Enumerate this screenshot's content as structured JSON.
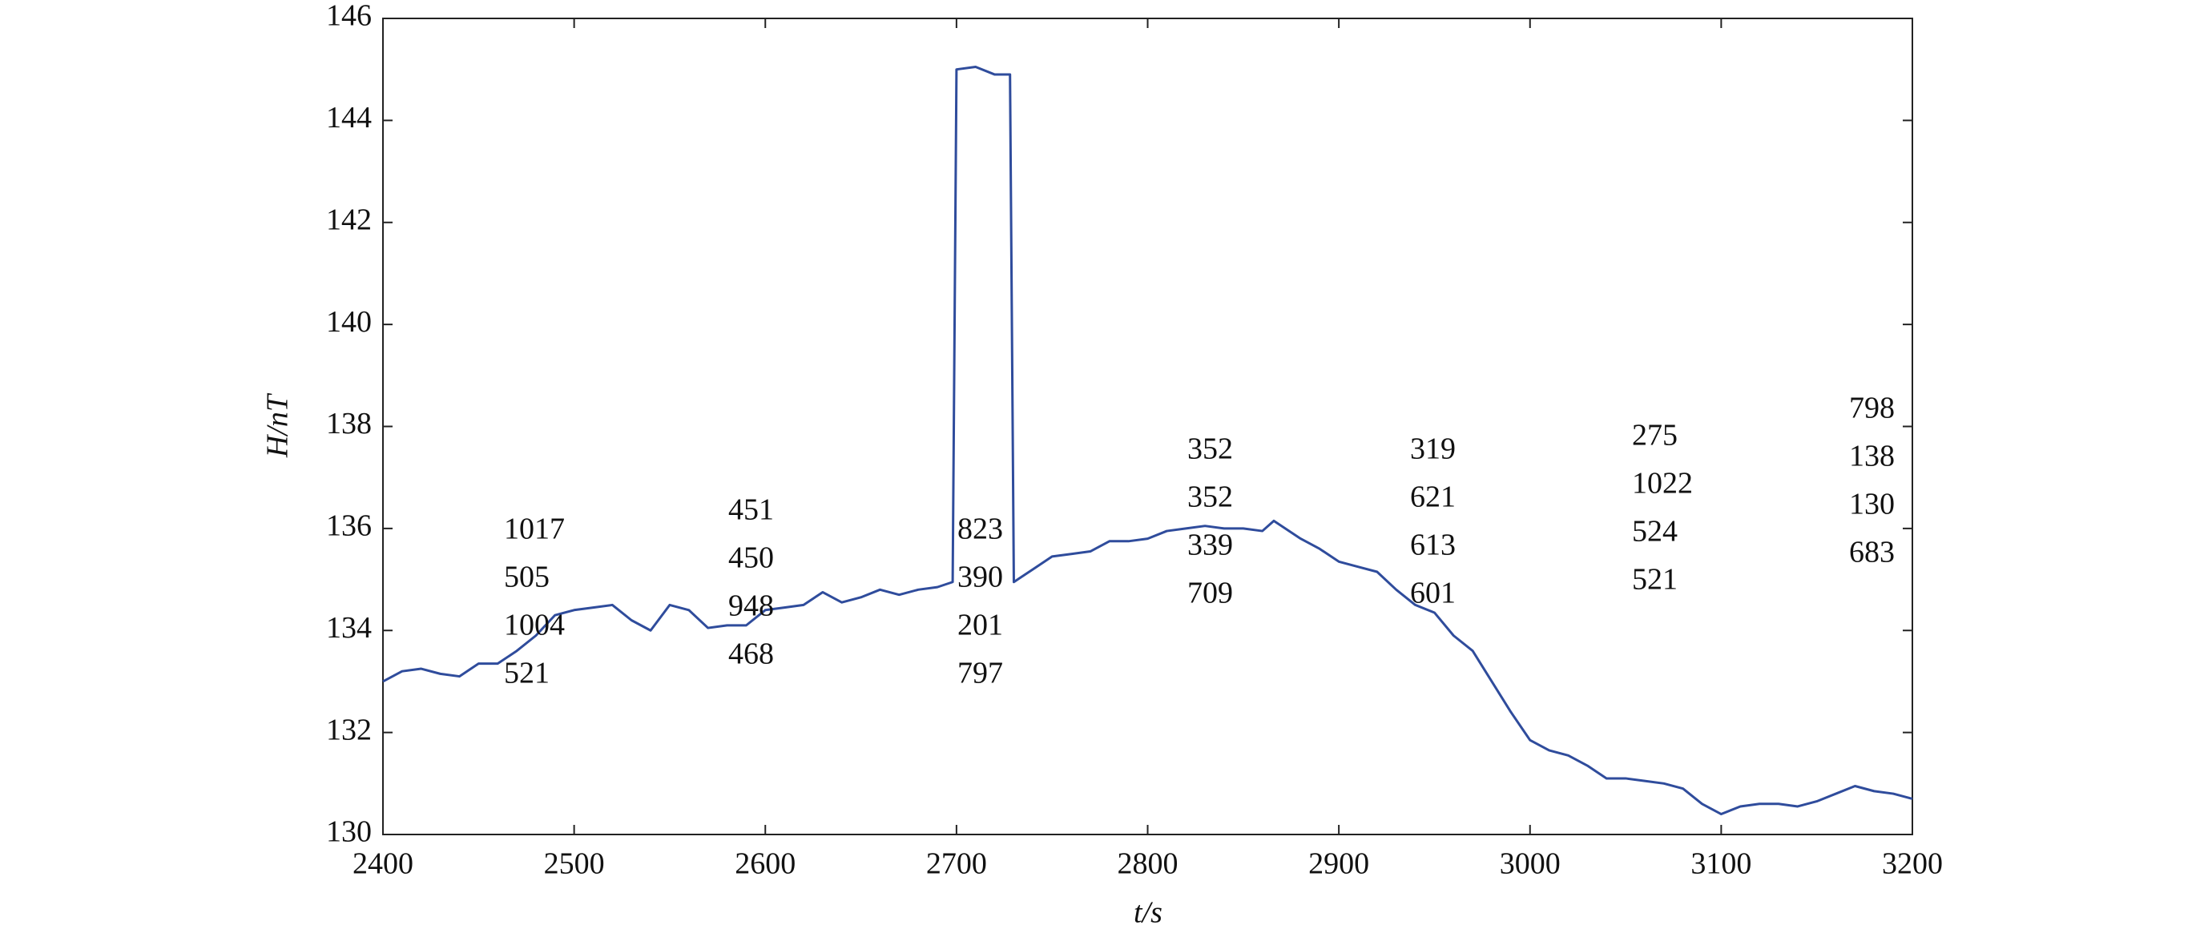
{
  "chart_data": {
    "type": "line",
    "x_label": "t/s",
    "y_label": "H/nT",
    "xlim": [
      2400,
      3200
    ],
    "ylim": [
      130,
      146
    ],
    "xticks": [
      2400,
      2500,
      2600,
      2700,
      2800,
      2900,
      3000,
      3100,
      3200
    ],
    "yticks": [
      130,
      132,
      134,
      136,
      138,
      140,
      142,
      144,
      146
    ],
    "color": "#2f4c9c",
    "x": [
      2400,
      2410,
      2420,
      2430,
      2440,
      2450,
      2460,
      2470,
      2480,
      2490,
      2500,
      2510,
      2520,
      2530,
      2540,
      2550,
      2560,
      2570,
      2580,
      2590,
      2600,
      2610,
      2620,
      2630,
      2640,
      2650,
      2660,
      2670,
      2680,
      2690,
      2698,
      2700,
      2710,
      2720,
      2728,
      2730,
      2740,
      2750,
      2760,
      2770,
      2780,
      2790,
      2800,
      2810,
      2820,
      2830,
      2840,
      2850,
      2860,
      2866,
      2870,
      2880,
      2890,
      2900,
      2910,
      2920,
      2930,
      2940,
      2950,
      2960,
      2970,
      2980,
      2990,
      3000,
      3010,
      3020,
      3030,
      3040,
      3050,
      3060,
      3070,
      3080,
      3090,
      3100,
      3110,
      3120,
      3130,
      3140,
      3150,
      3160,
      3170,
      3180,
      3190,
      3200
    ],
    "values": [
      133.0,
      133.2,
      133.25,
      133.15,
      133.1,
      133.35,
      133.35,
      133.6,
      133.9,
      134.3,
      134.4,
      134.45,
      134.5,
      134.2,
      134.0,
      134.5,
      134.4,
      134.05,
      134.1,
      134.1,
      134.4,
      134.45,
      134.5,
      134.75,
      134.55,
      134.65,
      134.8,
      134.7,
      134.8,
      134.85,
      134.95,
      145.0,
      145.05,
      144.9,
      144.9,
      134.95,
      135.2,
      135.45,
      135.5,
      135.55,
      135.75,
      135.75,
      135.8,
      135.95,
      136.0,
      136.05,
      136.0,
      136.0,
      135.95,
      136.15,
      136.05,
      135.8,
      135.6,
      135.35,
      135.25,
      135.15,
      134.8,
      134.5,
      134.35,
      133.9,
      133.6,
      133.0,
      132.4,
      131.85,
      131.65,
      131.55,
      131.35,
      131.1,
      131.1,
      131.05,
      131.0,
      130.9,
      130.6,
      130.4,
      130.55,
      130.6,
      130.6,
      130.55,
      130.65,
      130.8,
      130.95,
      130.85,
      130.8,
      130.7
    ],
    "annotations": [
      [
        "1017",
        "505",
        "1004",
        "521"
      ],
      [
        "451",
        "450",
        "948",
        "468"
      ],
      [
        "823",
        "390",
        "201",
        "797"
      ],
      [
        "352",
        "352",
        "339",
        "709"
      ],
      [
        "319",
        "621",
        "613",
        "601"
      ],
      [
        "275",
        "1022",
        "524",
        "521"
      ],
      [
        "798",
        "138",
        "130",
        "683"
      ]
    ]
  }
}
